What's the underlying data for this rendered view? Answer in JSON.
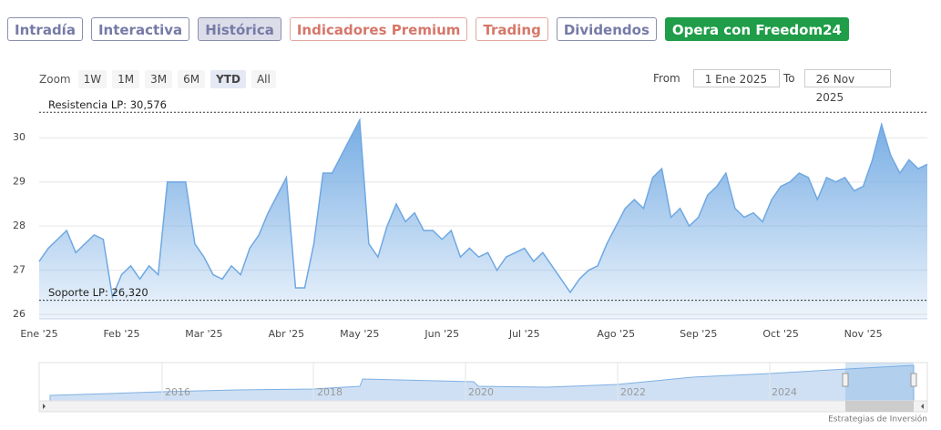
{
  "tabs": [
    "Intradía",
    "Interactiva",
    "Histórica",
    "Indicadores Premium",
    "Trading",
    "Dividendos",
    "Opera con Freedom24"
  ],
  "zoom": {
    "label": "Zoom",
    "buttons": [
      "1W",
      "1M",
      "3M",
      "6M",
      "YTD",
      "All"
    ]
  },
  "range": {
    "from_label": "From",
    "from": "1 Ene 2025",
    "to_label": "To",
    "to": "26 Nov 2025"
  },
  "navigator": {
    "years": [
      "2016",
      "2018",
      "2020",
      "2022",
      "2024"
    ]
  },
  "credit": "Estrategias de Inversión",
  "chart_data": {
    "type": "area",
    "color": "#6fa8e2",
    "categories": [
      "Ene '25",
      null,
      null,
      null,
      null,
      null,
      null,
      null,
      null,
      "Feb '25",
      null,
      null,
      null,
      null,
      null,
      null,
      null,
      null,
      "Mar '25",
      null,
      null,
      null,
      null,
      null,
      null,
      null,
      null,
      "Abr '25",
      null,
      null,
      null,
      null,
      null,
      null,
      null,
      "May '25",
      null,
      null,
      null,
      null,
      null,
      null,
      null,
      null,
      "Jun '25",
      null,
      null,
      null,
      null,
      null,
      null,
      null,
      null,
      "Jul '25",
      null,
      null,
      null,
      null,
      null,
      null,
      null,
      null,
      null,
      "Ago '25",
      null,
      null,
      null,
      null,
      null,
      null,
      null,
      null,
      "Sep '25",
      null,
      null,
      null,
      null,
      null,
      null,
      null,
      null,
      "Oct '25",
      null,
      null,
      null,
      null,
      null,
      null,
      null,
      null,
      "Nov '25",
      null,
      null,
      null,
      null,
      null,
      null,
      null
    ],
    "values": [
      27.2,
      27.5,
      27.7,
      27.9,
      27.4,
      27.6,
      27.8,
      27.7,
      26.4,
      26.9,
      27.1,
      26.8,
      27.1,
      26.9,
      29.0,
      29.0,
      29.0,
      27.6,
      27.3,
      26.9,
      26.8,
      27.1,
      26.9,
      27.5,
      27.8,
      28.3,
      28.7,
      29.1,
      26.6,
      26.6,
      27.6,
      29.2,
      29.2,
      29.6,
      30.0,
      30.4,
      27.6,
      27.3,
      28.0,
      28.5,
      28.1,
      28.3,
      27.9,
      27.9,
      27.7,
      27.9,
      27.3,
      27.5,
      27.3,
      27.4,
      27.0,
      27.3,
      27.4,
      27.5,
      27.2,
      27.4,
      27.1,
      26.8,
      26.5,
      26.8,
      27.0,
      27.1,
      27.6,
      28.0,
      28.4,
      28.6,
      28.4,
      29.1,
      29.3,
      28.2,
      28.4,
      28.0,
      28.2,
      28.7,
      28.9,
      29.2,
      28.4,
      28.2,
      28.3,
      28.1,
      28.6,
      28.9,
      29.0,
      29.2,
      29.1,
      28.6,
      29.1,
      29.0,
      29.1,
      28.8,
      28.9,
      29.5,
      30.3,
      29.6,
      29.2,
      29.5,
      29.3,
      29.4
    ],
    "ylim": [
      25.9,
      30.85
    ],
    "yticks": [
      26,
      27,
      28,
      29,
      30
    ],
    "grid": true,
    "annotations": [
      {
        "label": "Resistencia LP: 30,576",
        "value": 30.576
      },
      {
        "label": "Soporte LP: 26,320",
        "value": 26.32
      }
    ]
  }
}
